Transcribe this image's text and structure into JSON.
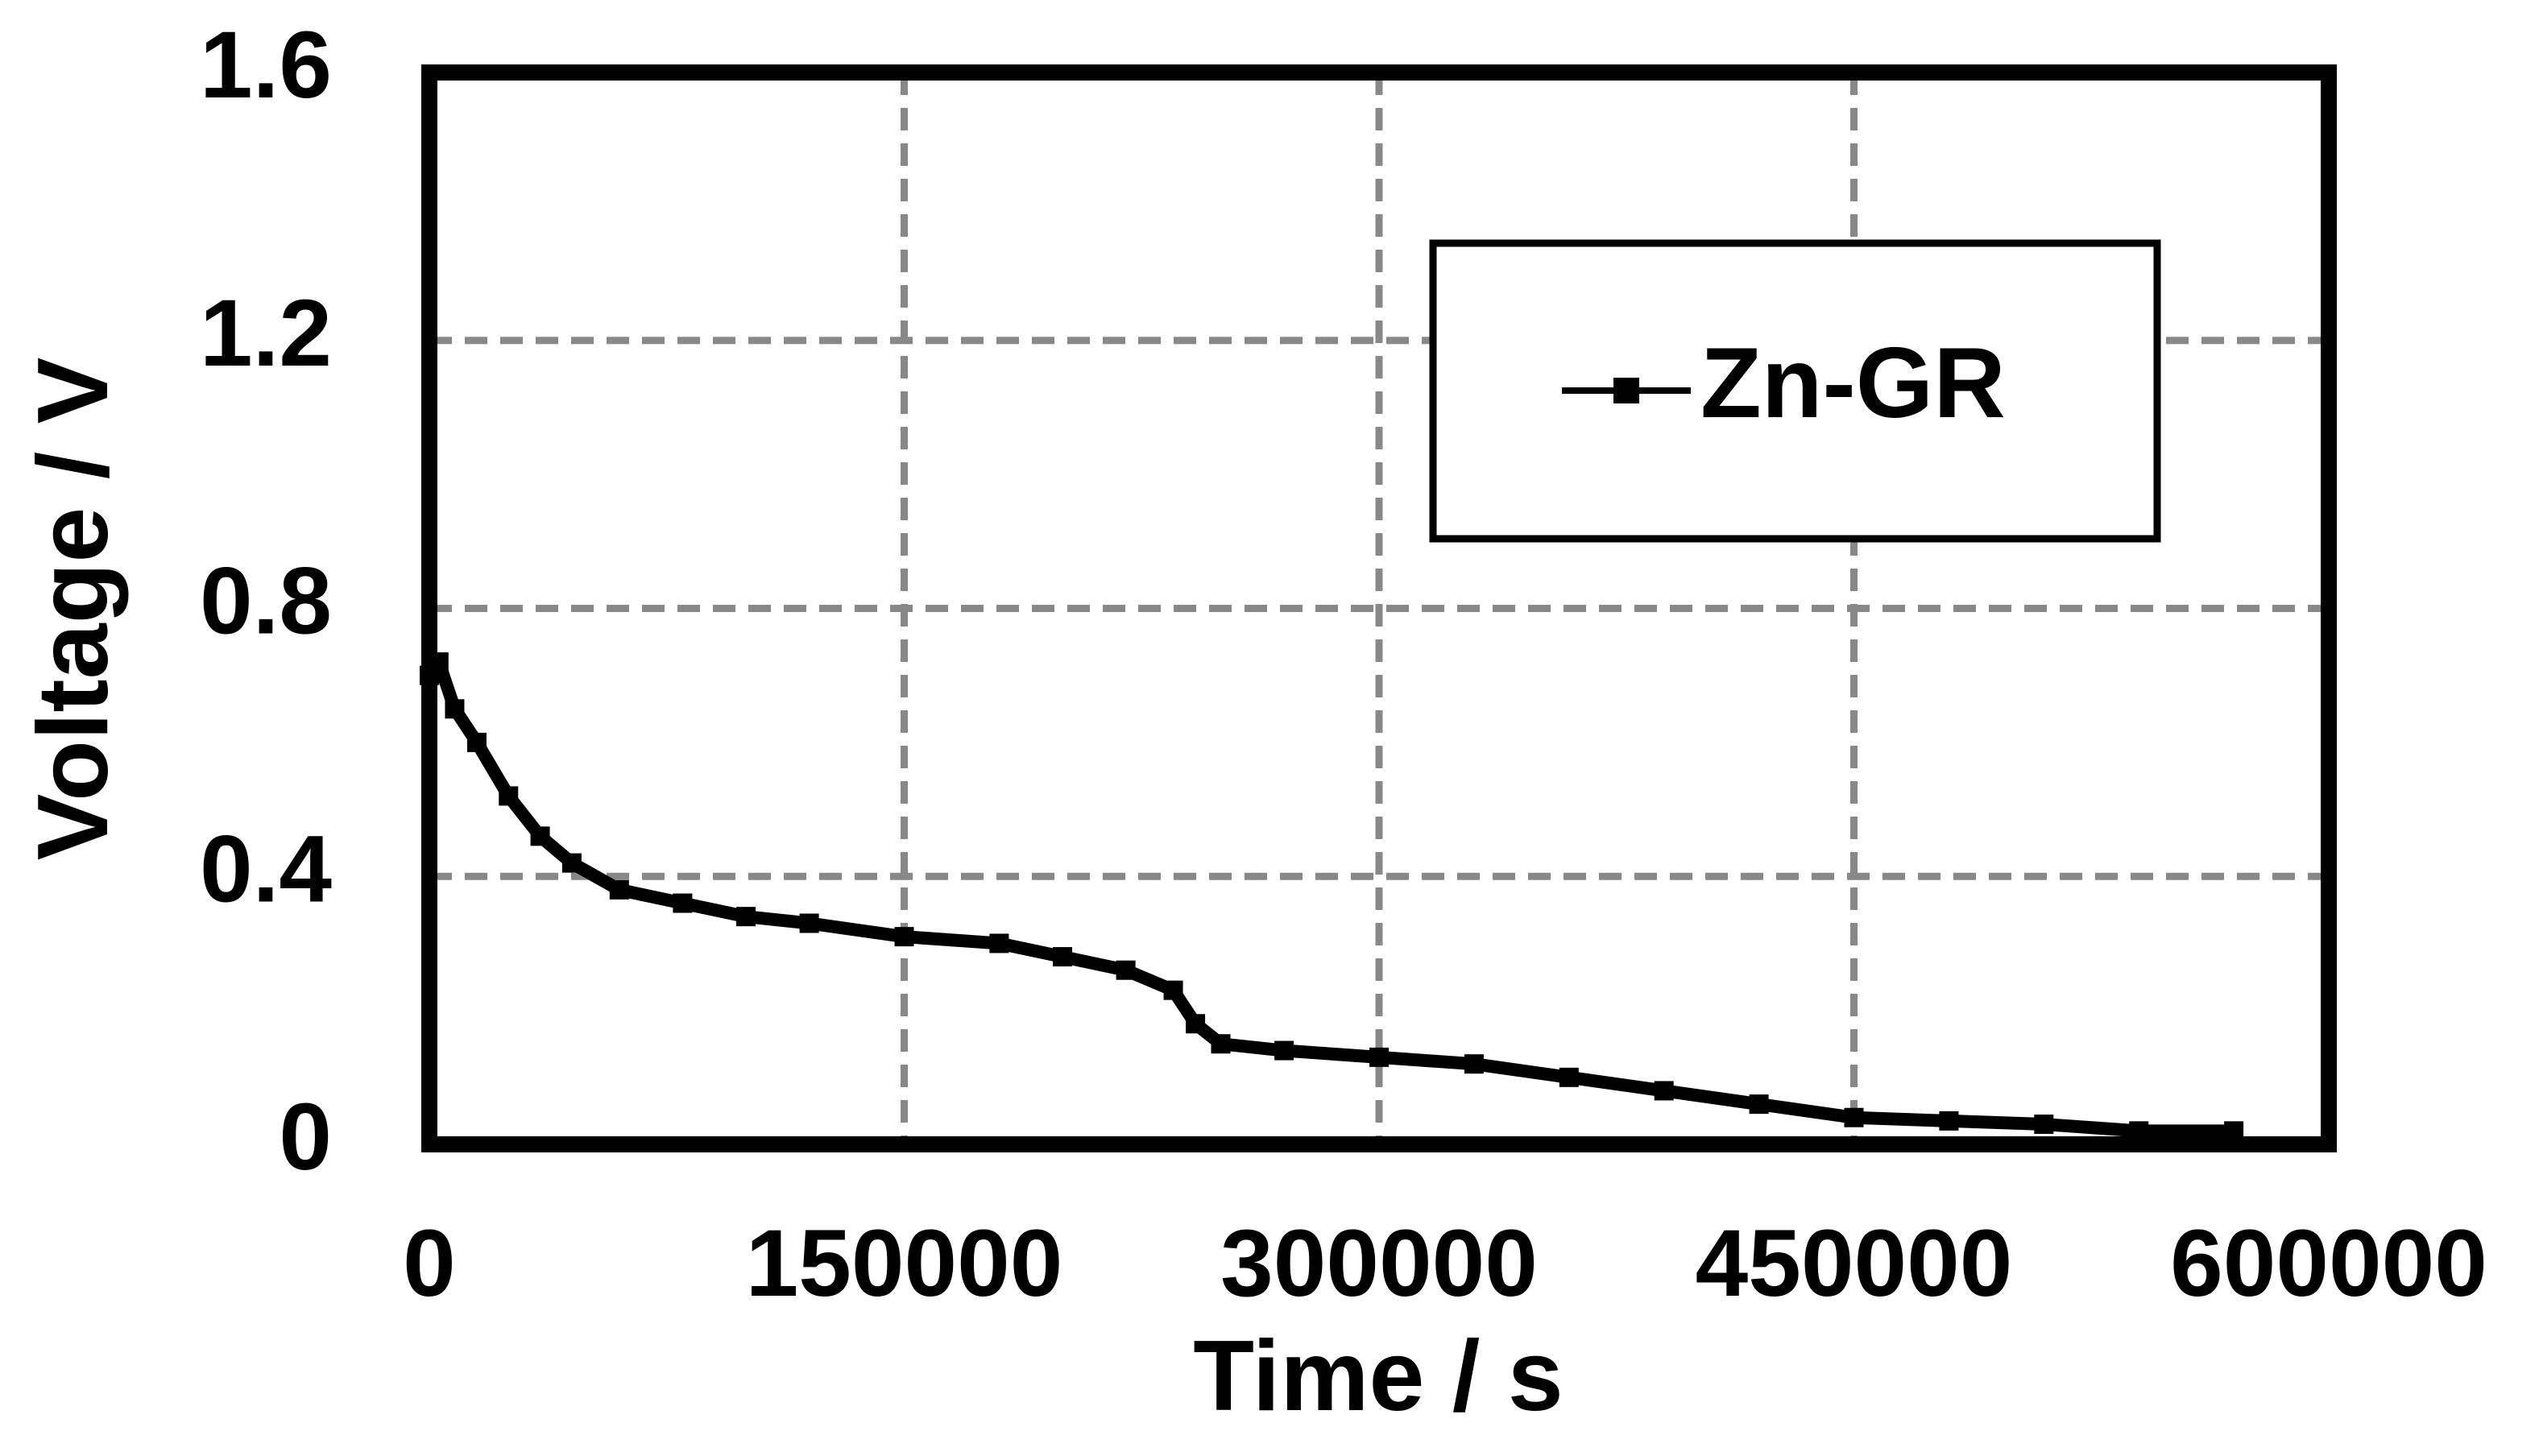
{
  "chart_data": {
    "type": "line",
    "x_label": "Time / s",
    "y_label": "Voltage / V",
    "xlim": [
      0,
      600000
    ],
    "xticks": [
      0,
      150000,
      300000,
      450000,
      600000
    ],
    "ylim": [
      0,
      1.6
    ],
    "yticks": [
      0,
      0.4,
      0.8,
      1.2,
      1.6
    ],
    "grid": true,
    "legend": "upper right",
    "x": [
      0,
      3000,
      8000,
      15000,
      25000,
      35000,
      45000,
      60000,
      80000,
      100000,
      120000,
      150000,
      180000,
      200000,
      220000,
      235000,
      242000,
      250000,
      270000,
      300000,
      330000,
      360000,
      390000,
      420000,
      450000,
      480000,
      510000,
      540000,
      570000
    ],
    "series": [
      {
        "name": "Zn-GR",
        "color": "#000000",
        "values": [
          0.7,
          0.72,
          0.65,
          0.6,
          0.52,
          0.46,
          0.42,
          0.38,
          0.36,
          0.34,
          0.33,
          0.31,
          0.3,
          0.28,
          0.26,
          0.23,
          0.18,
          0.15,
          0.14,
          0.13,
          0.12,
          0.1,
          0.08,
          0.06,
          0.04,
          0.035,
          0.03,
          0.02,
          0.02
        ]
      }
    ]
  }
}
